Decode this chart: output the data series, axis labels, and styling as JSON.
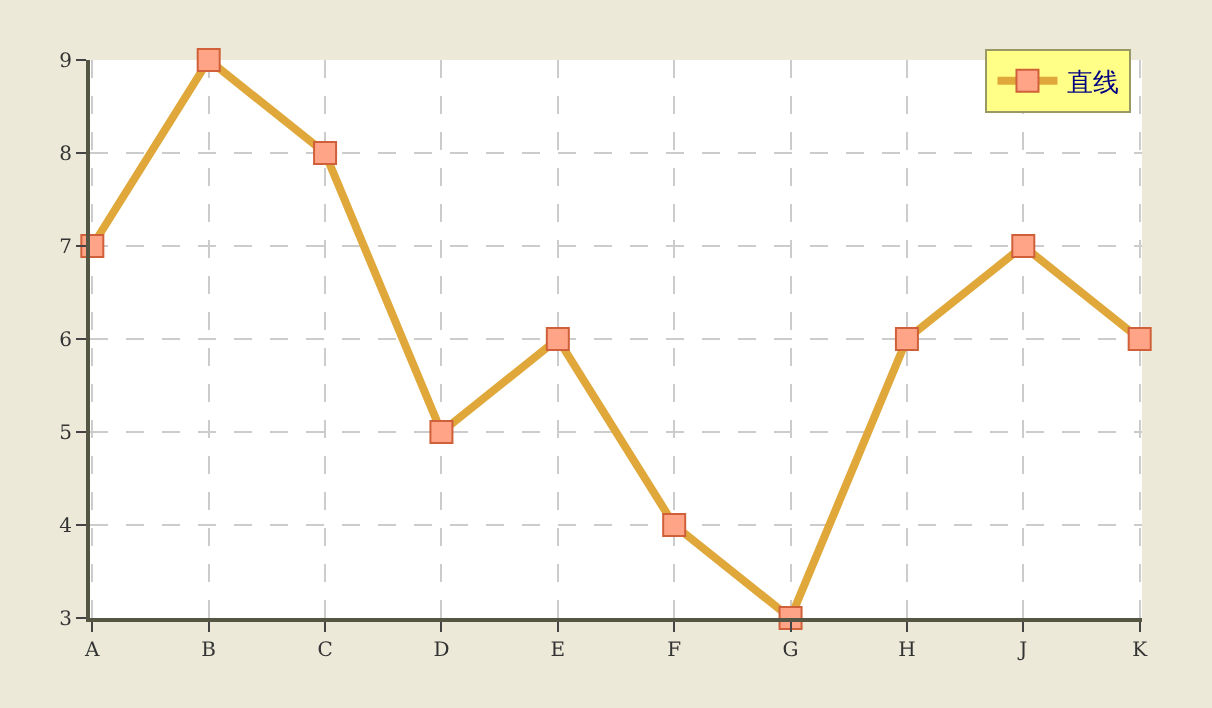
{
  "chart_data": {
    "type": "line",
    "categories": [
      "A",
      "B",
      "C",
      "D",
      "E",
      "F",
      "G",
      "H",
      "J",
      "K"
    ],
    "series": [
      {
        "name": "直线",
        "color": "#e0a83a",
        "values": [
          7,
          9,
          8,
          5,
          6,
          4,
          3,
          6,
          7,
          6
        ]
      }
    ],
    "ylim": [
      3,
      9
    ],
    "yticks": [
      3,
      4,
      5,
      6,
      7,
      8,
      9
    ],
    "grid": true,
    "legend": "top right",
    "marker": "square",
    "line_style": "solid"
  }
}
